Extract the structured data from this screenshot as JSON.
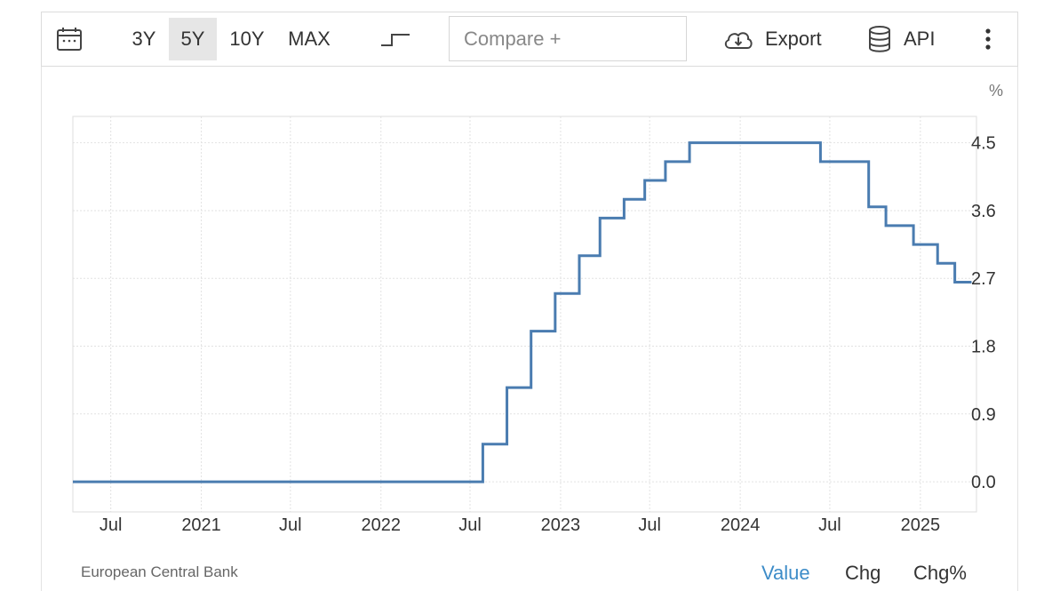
{
  "toolbar": {
    "calendar_icon": "calendar-icon",
    "ranges": [
      {
        "label": "3Y",
        "active": false
      },
      {
        "label": "5Y",
        "active": true
      },
      {
        "label": "10Y",
        "active": false
      },
      {
        "label": "MAX",
        "active": false
      }
    ],
    "step_icon": "step-chart-icon",
    "compare_placeholder": "Compare +",
    "export_label": "Export",
    "export_icon": "cloud-download-icon",
    "api_label": "API",
    "api_icon": "database-icon",
    "more_icon": "vertical-dots-icon"
  },
  "chart_data": {
    "type": "line",
    "step": true,
    "unit_label": "%",
    "line_color": "#4a7cb0",
    "ylim": [
      -0.4,
      4.85
    ],
    "y_ticks": [
      0.0,
      0.9,
      1.8,
      2.7,
      3.6,
      4.5
    ],
    "y_tick_labels": [
      "0.0",
      "0.9",
      "1.8",
      "2.7",
      "3.6",
      "4.5"
    ],
    "xlim": [
      "2020-04-15",
      "2025-04-25"
    ],
    "x_ticks": [
      {
        "date": "2020-07-01",
        "label": "Jul"
      },
      {
        "date": "2021-01-01",
        "label": "2021"
      },
      {
        "date": "2021-07-01",
        "label": "Jul"
      },
      {
        "date": "2022-01-01",
        "label": "2022"
      },
      {
        "date": "2022-07-01",
        "label": "Jul"
      },
      {
        "date": "2023-01-01",
        "label": "2023"
      },
      {
        "date": "2023-07-01",
        "label": "Jul"
      },
      {
        "date": "2024-01-01",
        "label": "2024"
      },
      {
        "date": "2024-07-01",
        "label": "Jul"
      },
      {
        "date": "2025-01-01",
        "label": "2025"
      }
    ],
    "series": [
      {
        "points": [
          {
            "x": "2020-04-15",
            "y": 0.0
          },
          {
            "x": "2022-07-27",
            "y": 0.5
          },
          {
            "x": "2022-09-14",
            "y": 1.25
          },
          {
            "x": "2022-11-02",
            "y": 2.0
          },
          {
            "x": "2022-12-21",
            "y": 2.5
          },
          {
            "x": "2023-02-08",
            "y": 3.0
          },
          {
            "x": "2023-03-22",
            "y": 3.5
          },
          {
            "x": "2023-05-10",
            "y": 3.75
          },
          {
            "x": "2023-06-21",
            "y": 4.0
          },
          {
            "x": "2023-08-02",
            "y": 4.25
          },
          {
            "x": "2023-09-20",
            "y": 4.5
          },
          {
            "x": "2024-06-12",
            "y": 4.25
          },
          {
            "x": "2024-09-18",
            "y": 3.65
          },
          {
            "x": "2024-10-23",
            "y": 3.4
          },
          {
            "x": "2024-12-18",
            "y": 3.15
          },
          {
            "x": "2025-02-05",
            "y": 2.9
          },
          {
            "x": "2025-03-12",
            "y": 2.65
          }
        ],
        "end": "2025-04-15"
      }
    ]
  },
  "footer": {
    "source": "European Central Bank",
    "tabs": [
      {
        "label": "Value",
        "active": true
      },
      {
        "label": "Chg",
        "active": false
      },
      {
        "label": "Chg%",
        "active": false
      }
    ]
  }
}
